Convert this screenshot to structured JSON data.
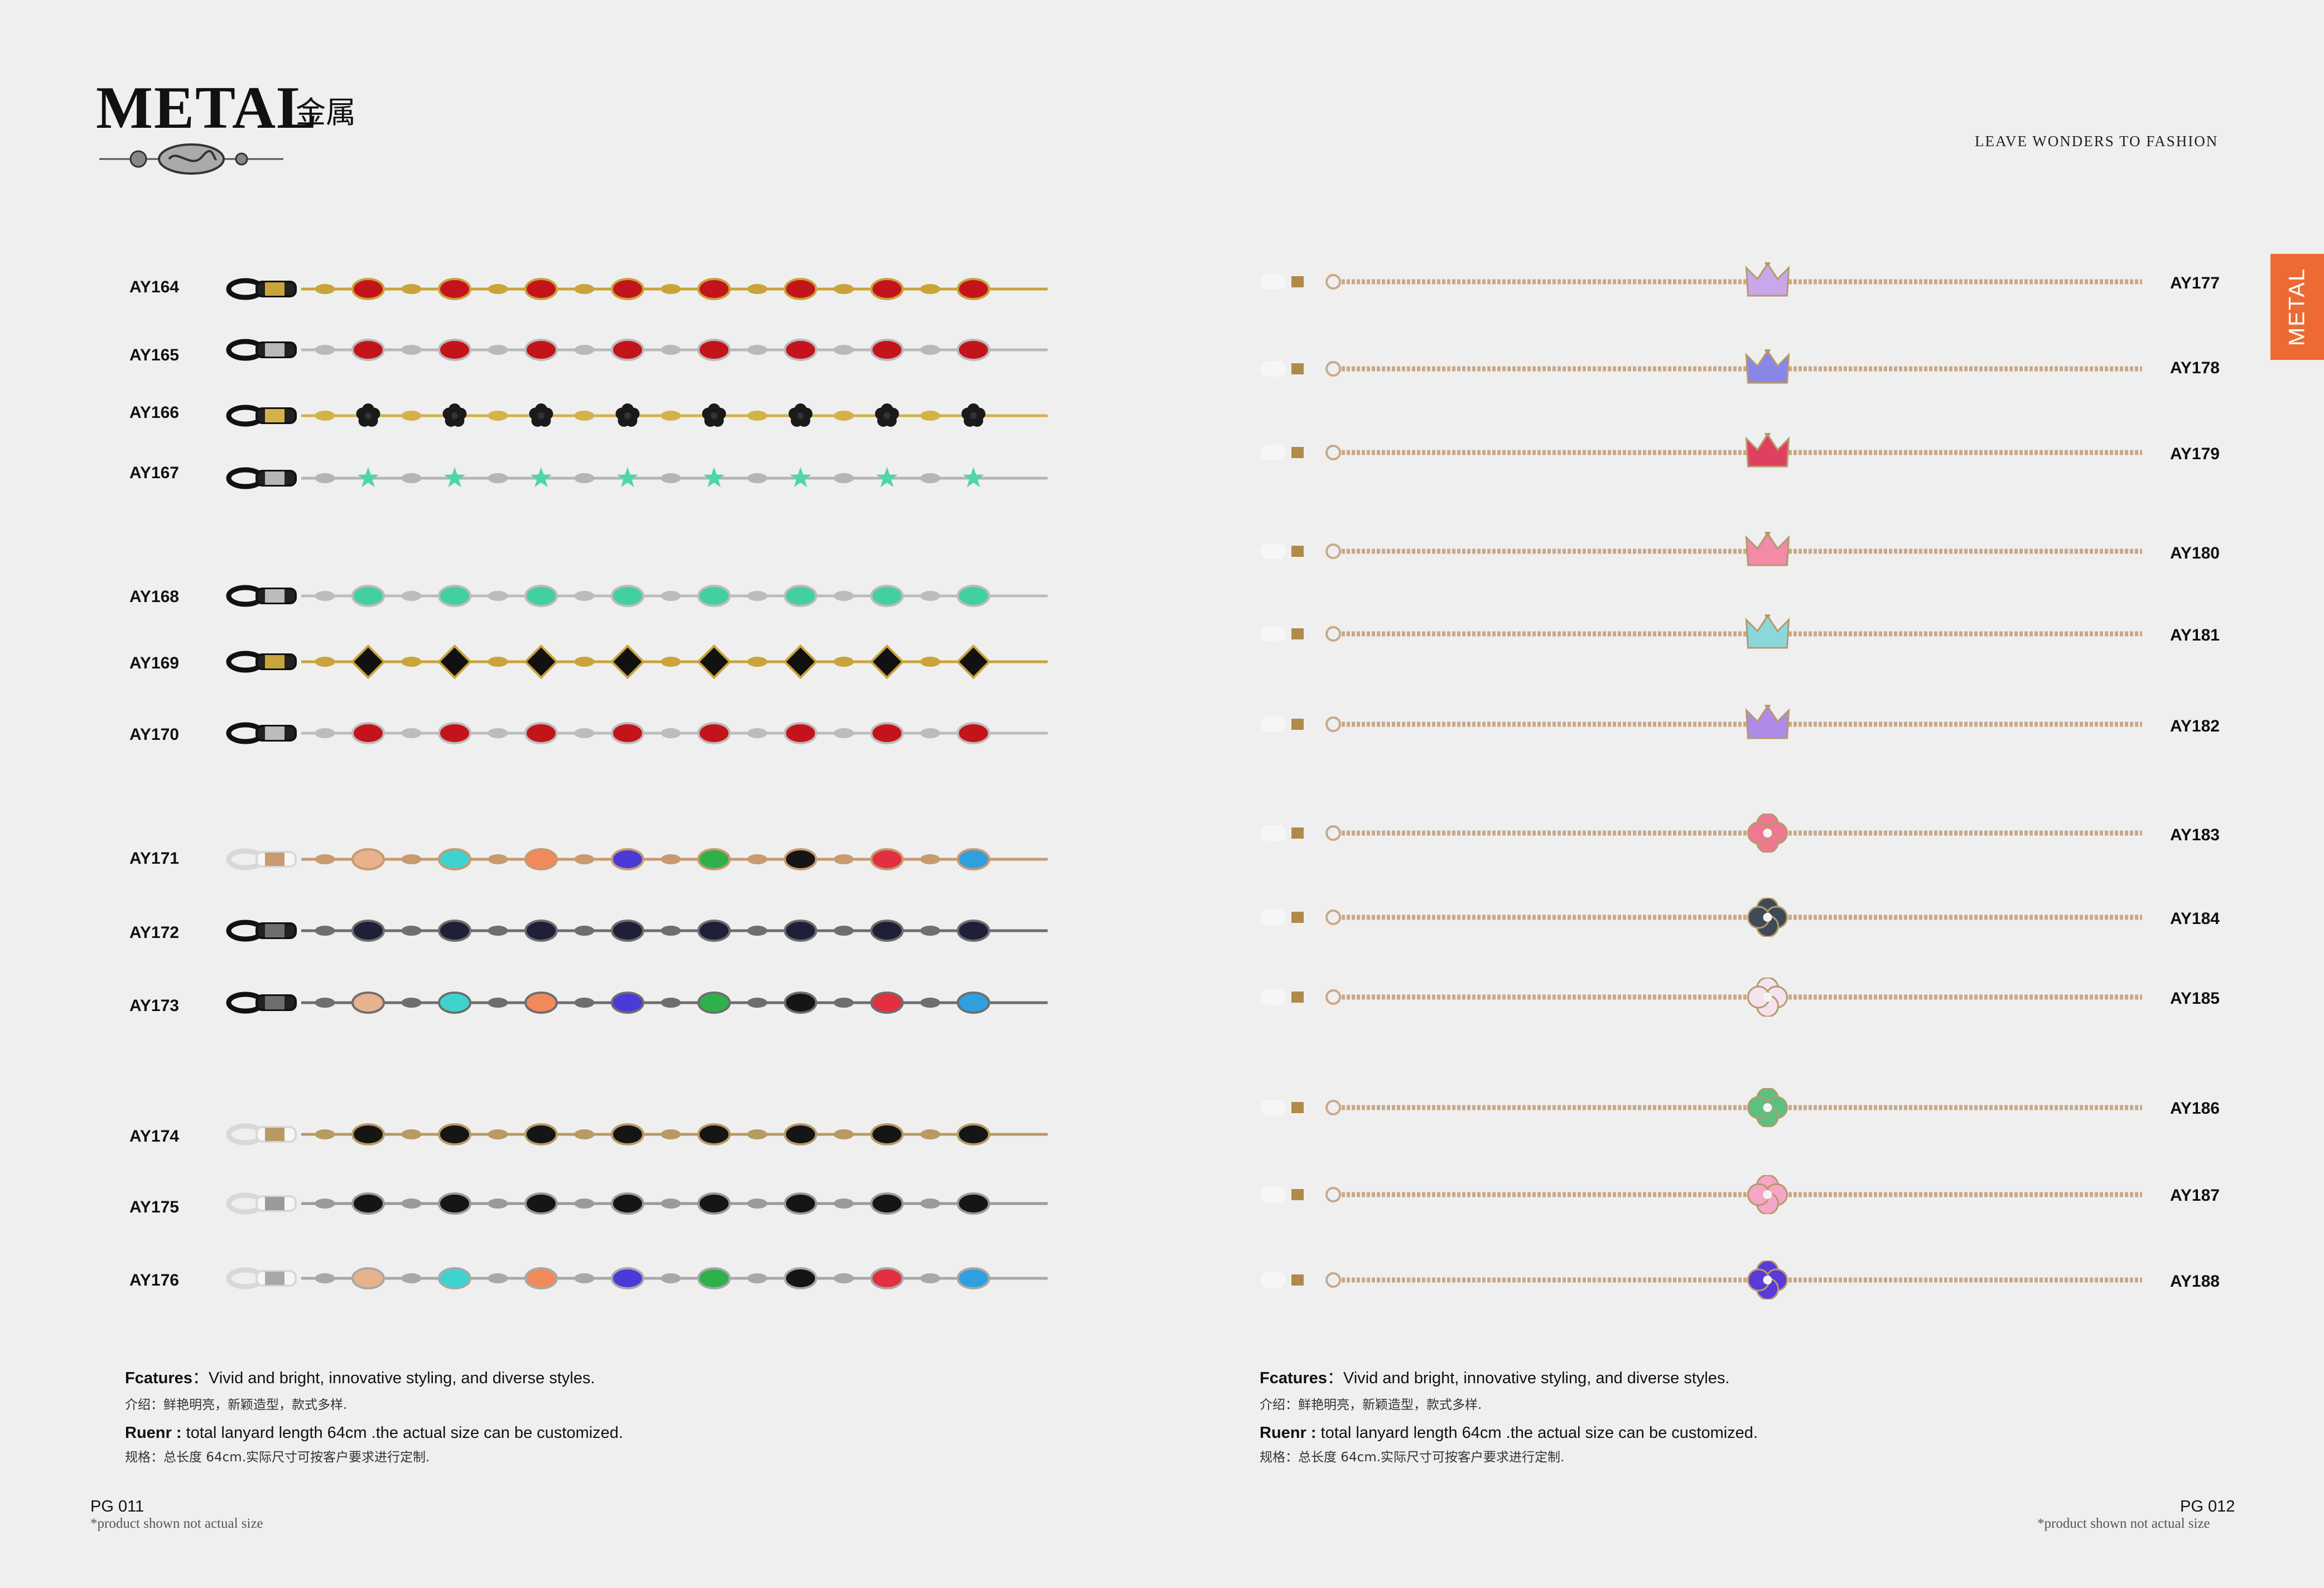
{
  "header": {
    "title": "METAL",
    "subtitle": "金属",
    "tagline": "LEAVE WONDERS TO FASHION",
    "side_tab": "METAL"
  },
  "left_page": {
    "products": [
      "AY164",
      "AY165",
      "AY166",
      "AY167",
      "AY168",
      "AY169",
      "AY170",
      "AY171",
      "AY172",
      "AY173",
      "AY174",
      "AY175",
      "AY176"
    ],
    "features_label": "Fcatures",
    "features_sep": "：",
    "features_text": "Vivid and bright, innovative styling, and diverse styles.",
    "features_cn": "介绍：鲜艳明亮，新颖造型，款式多样.",
    "ruenr_label": "Ruenr :",
    "ruenr_text": " total lanyard length 64cm .the actual size can be customized.",
    "ruenr_cn": "规格：总长度 64cm.实际尺寸可按客户要求进行定制.",
    "page_number": "PG 011",
    "note": "*product shown not actual size"
  },
  "right_page": {
    "products": [
      "AY177",
      "AY178",
      "AY179",
      "AY180",
      "AY181",
      "AY182",
      "AY183",
      "AY184",
      "AY185",
      "AY186",
      "AY187",
      "AY188"
    ],
    "features_label": "Fcatures",
    "features_sep": "：",
    "features_text": "Vivid and bright, innovative styling, and diverse styles.",
    "features_cn": "介绍：鲜艳明亮，新颖造型，款式多样.",
    "ruenr_label": "Ruenr :",
    "ruenr_text": " total lanyard length 64cm .the actual size can be customized.",
    "ruenr_cn": "规格：总长度 64cm.实际尺寸可按客户要求进行定制.",
    "page_number": "PG 012",
    "note": "*product shown not actual size"
  },
  "colors": {
    "accent": "#ee6a34",
    "background": "#efefef"
  },
  "chain_styles": {
    "left": [
      {
        "metal": "#c9a43a",
        "bead": "#c4141b",
        "shape": "oval"
      },
      {
        "metal": "#b9b9b9",
        "bead": "#c4141b",
        "shape": "oval"
      },
      {
        "metal": "#d4b24a",
        "bead": "#1a1a1a",
        "shape": "flower"
      },
      {
        "metal": "#b5b5b5",
        "bead": "#4fd6a6",
        "shape": "star"
      },
      {
        "metal": "#bcbcbc",
        "bead": "#43d0a0",
        "shape": "oval"
      },
      {
        "metal": "#c9a43a",
        "bead": "#111111",
        "shape": "diamond"
      },
      {
        "metal": "#bcbcbc",
        "bead": "#c4141b",
        "shape": "oval"
      },
      {
        "metal": "#c79a70",
        "bead": "multi",
        "shape": "oval"
      },
      {
        "metal": "#6e6e6e",
        "bead": "#1f2038",
        "shape": "oval"
      },
      {
        "metal": "#6e6e6e",
        "bead": "multi",
        "shape": "oval"
      },
      {
        "metal": "#b89a62",
        "bead": "#151515",
        "shape": "oval"
      },
      {
        "metal": "#9a9a9a",
        "bead": "#151515",
        "shape": "oval"
      },
      {
        "metal": "#a8a8a8",
        "bead": "multi",
        "shape": "oval"
      }
    ],
    "right": [
      {
        "metal": "#c9a88a",
        "pendant": "#c8a8e8",
        "shape": "crown"
      },
      {
        "metal": "#c9a88a",
        "pendant": "#8a86e8",
        "shape": "crown"
      },
      {
        "metal": "#c9a88a",
        "pendant": "#e04060",
        "shape": "crown"
      },
      {
        "metal": "#c9a88a",
        "pendant": "#f28aa8",
        "shape": "crown"
      },
      {
        "metal": "#c9a88a",
        "pendant": "#8ad8dc",
        "shape": "crown"
      },
      {
        "metal": "#c9a88a",
        "pendant": "#b08ae8",
        "shape": "crown"
      },
      {
        "metal": "#c9a88a",
        "pendant": "#f07890",
        "shape": "clover"
      },
      {
        "metal": "#c9a88a",
        "pendant": "#3e4a58",
        "shape": "clover"
      },
      {
        "metal": "#c9a88a",
        "pendant": "#f4e2ee",
        "shape": "clover"
      },
      {
        "metal": "#c9a88a",
        "pendant": "#5cc080",
        "shape": "clover"
      },
      {
        "metal": "#c9a88a",
        "pendant": "#f6a6c6",
        "shape": "clover"
      },
      {
        "metal": "#c9a88a",
        "pendant": "#5a3ad8",
        "shape": "clover"
      }
    ]
  }
}
